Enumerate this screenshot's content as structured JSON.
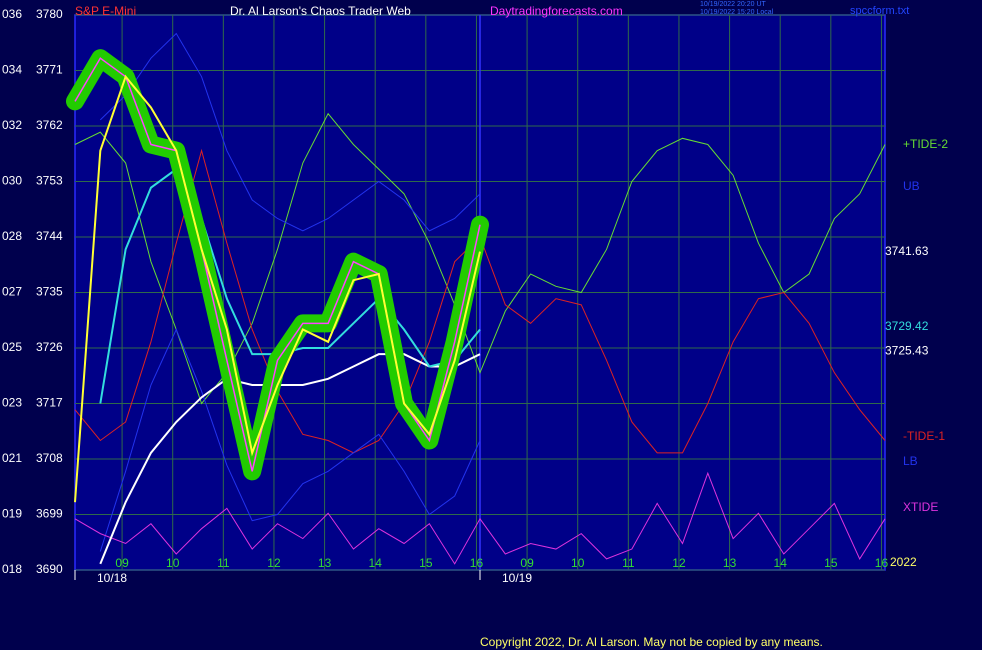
{
  "chart_data": {
    "type": "line",
    "title": "Dr. Al Larson's Chaos Trader Web",
    "instrument": "S&P E-Mini",
    "site": "Daytradingforecasts.com",
    "timestamps": [
      "10/19/2022 20:20 UT",
      "10/19/2022 15:20 Local"
    ],
    "file": "spccform.txt",
    "copyright": "Copyright 2022, Dr. Al Larson. May not be copied by any means.",
    "year": "2022",
    "ylim": [
      3690,
      3780
    ],
    "yticks": [
      3780,
      3771,
      3762,
      3753,
      3744,
      3735,
      3726,
      3717,
      3708,
      3699,
      3690
    ],
    "ytick_codes": [
      "036",
      "034",
      "032",
      "030",
      "028",
      "027",
      "025",
      "023",
      "021",
      "019",
      "018"
    ],
    "xlim": [
      0,
      16
    ],
    "xticks": [
      {
        "value": 0.93,
        "label": "09"
      },
      {
        "value": 1.93,
        "label": "10"
      },
      {
        "value": 2.93,
        "label": "11"
      },
      {
        "value": 3.93,
        "label": "12"
      },
      {
        "value": 4.93,
        "label": "13"
      },
      {
        "value": 5.93,
        "label": "14"
      },
      {
        "value": 6.93,
        "label": "15"
      },
      {
        "value": 7.93,
        "label": "16"
      },
      {
        "value": 8.93,
        "label": "09"
      },
      {
        "value": 9.93,
        "label": "10"
      },
      {
        "value": 10.93,
        "label": "11"
      },
      {
        "value": 11.93,
        "label": "12"
      },
      {
        "value": 12.93,
        "label": "13"
      },
      {
        "value": 13.93,
        "label": "14"
      },
      {
        "value": 14.93,
        "label": "15"
      },
      {
        "value": 15.93,
        "label": "16"
      }
    ],
    "days": [
      {
        "x": 0,
        "label": "10/18"
      },
      {
        "x": 8,
        "label": "10/19"
      }
    ],
    "grid": true,
    "x": [
      0,
      0.5,
      1,
      1.5,
      2,
      2.5,
      3,
      3.5,
      4,
      4.5,
      5,
      5.5,
      6,
      6.5,
      7,
      7.5,
      8,
      8.5,
      9,
      9.5,
      10,
      10.5,
      11,
      11.5,
      12,
      12.5,
      13,
      13.5,
      14,
      14.5,
      15,
      15.5,
      16
    ],
    "series": [
      {
        "name": "+TIDE-2",
        "color": "#66dd33",
        "values": [
          3759,
          3761,
          3756,
          3740,
          3729,
          3717,
          3722,
          3730,
          3742,
          3756,
          3764,
          3759,
          3755,
          3751,
          3743,
          3733,
          3722,
          3732,
          3738,
          3736,
          3735,
          3742,
          3753,
          3758,
          3760,
          3759,
          3754,
          3743,
          3735,
          3738,
          3747,
          3751,
          3759
        ]
      },
      {
        "name": "UB",
        "color": "#2233ee",
        "values": [
          null,
          3763,
          3767,
          3773,
          3777,
          3770,
          3758,
          3750,
          3747,
          3745,
          3747,
          3750,
          3753,
          3750,
          3745,
          3747,
          3751,
          null,
          null,
          null,
          null,
          null,
          null,
          null,
          null,
          null,
          null,
          null,
          null,
          null,
          null,
          null,
          null
        ]
      },
      {
        "name": "-TIDE-1",
        "color": "#dd2222",
        "values": [
          3716,
          3711,
          3714,
          3727,
          3743,
          3758,
          3743,
          3729,
          3719,
          3712,
          3711,
          3709,
          3711,
          3717,
          3727,
          3740,
          3744,
          3733,
          3730,
          3734,
          3733,
          3724,
          3714,
          3709,
          3709,
          3717,
          3727,
          3734,
          3735,
          3730,
          3722,
          3716,
          3711
        ]
      },
      {
        "name": "LB",
        "color": "#2233ee",
        "values": [
          null,
          3693,
          3706,
          3720,
          3729,
          3719,
          3707,
          3698,
          3699,
          3704,
          3706,
          3709,
          3712,
          3706,
          3699,
          3702,
          3711,
          null,
          null,
          null,
          null,
          null,
          null,
          null,
          null,
          null,
          null,
          null,
          null,
          null,
          null,
          null,
          null
        ]
      },
      {
        "name": "XTIDE",
        "color": "#dd33dd",
        "values": [
          3698.3,
          3695.9,
          3694.3,
          3697.5,
          3692.6,
          3696.7,
          3700.0,
          3693.4,
          3697.5,
          3695.1,
          3699.2,
          3693.4,
          3696.7,
          3694.3,
          3697.5,
          3691.0,
          3698.3,
          3692.6,
          3694.3,
          3693.4,
          3695.9,
          3691.8,
          3693.4,
          3700.8,
          3694.3,
          3705.7,
          3695.1,
          3699.2,
          3692.6,
          3696.7,
          3700.8,
          3691.8,
          3698.3
        ]
      },
      {
        "color": "#ffffff",
        "values": [
          null,
          3691,
          3701,
          3709,
          3714,
          3718,
          3721,
          3720,
          3720,
          3720,
          3721,
          3723,
          3725,
          3725,
          3723,
          3723,
          3725,
          null,
          null,
          null,
          null,
          null,
          null,
          null,
          null,
          null,
          null,
          null,
          null,
          null,
          null,
          null,
          null
        ]
      },
      {
        "color": "#33dddd",
        "values": [
          null,
          3717,
          3742,
          3752,
          3755,
          3747,
          3734,
          3725,
          3725,
          3726,
          3726,
          3730,
          3734,
          3729,
          3723,
          3724,
          3729,
          null,
          null,
          null,
          null,
          null,
          null,
          null,
          null,
          null,
          null,
          null,
          null,
          null,
          null,
          null,
          null
        ]
      },
      {
        "color": "#22cc00",
        "style": "price",
        "values": [
          3766,
          3773,
          3770,
          3759,
          3758,
          3742,
          3724,
          3706,
          3724,
          3730,
          3730,
          3740,
          3738,
          3717,
          3711,
          3727,
          3746,
          null,
          null,
          null,
          null,
          null,
          null,
          null,
          null,
          null,
          null,
          null,
          null,
          null,
          null,
          null,
          null
        ]
      },
      {
        "color": "#ffff33",
        "values": [
          3701,
          3758,
          3770,
          3765,
          3758,
          3742,
          3729,
          3709,
          3720,
          3729,
          3727,
          3737,
          3738,
          3717,
          3712,
          3724,
          3741.63,
          null,
          null,
          null,
          null,
          null,
          null,
          null,
          null,
          null,
          null,
          null,
          null,
          null,
          null,
          null,
          null
        ]
      }
    ],
    "last_values": [
      {
        "value": 3741.63,
        "color": "#ffffff"
      },
      {
        "value": 3729.42,
        "color": "#33dddd"
      },
      {
        "value": 3725.43,
        "color": "#ffffff"
      }
    ]
  }
}
